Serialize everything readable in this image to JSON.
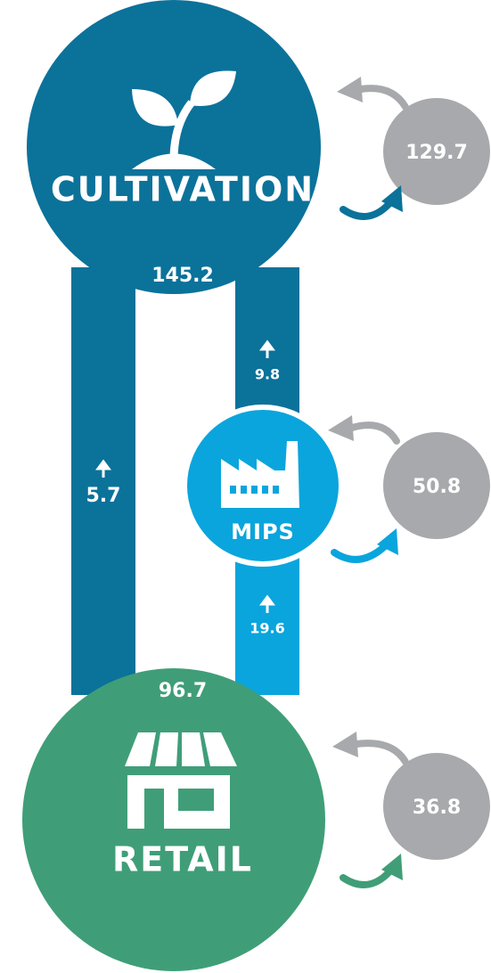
{
  "nodes": [
    {
      "label": "CULTIVATION",
      "value": "145.2",
      "loop": "129.7"
    },
    {
      "label": "MIPS",
      "loop": "50.8"
    },
    {
      "label": "RETAIL",
      "value": "96.7",
      "loop": "36.8"
    }
  ],
  "flows": [
    {
      "value": "5.7"
    },
    {
      "value": "9.8"
    },
    {
      "value": "19.6"
    }
  ]
}
